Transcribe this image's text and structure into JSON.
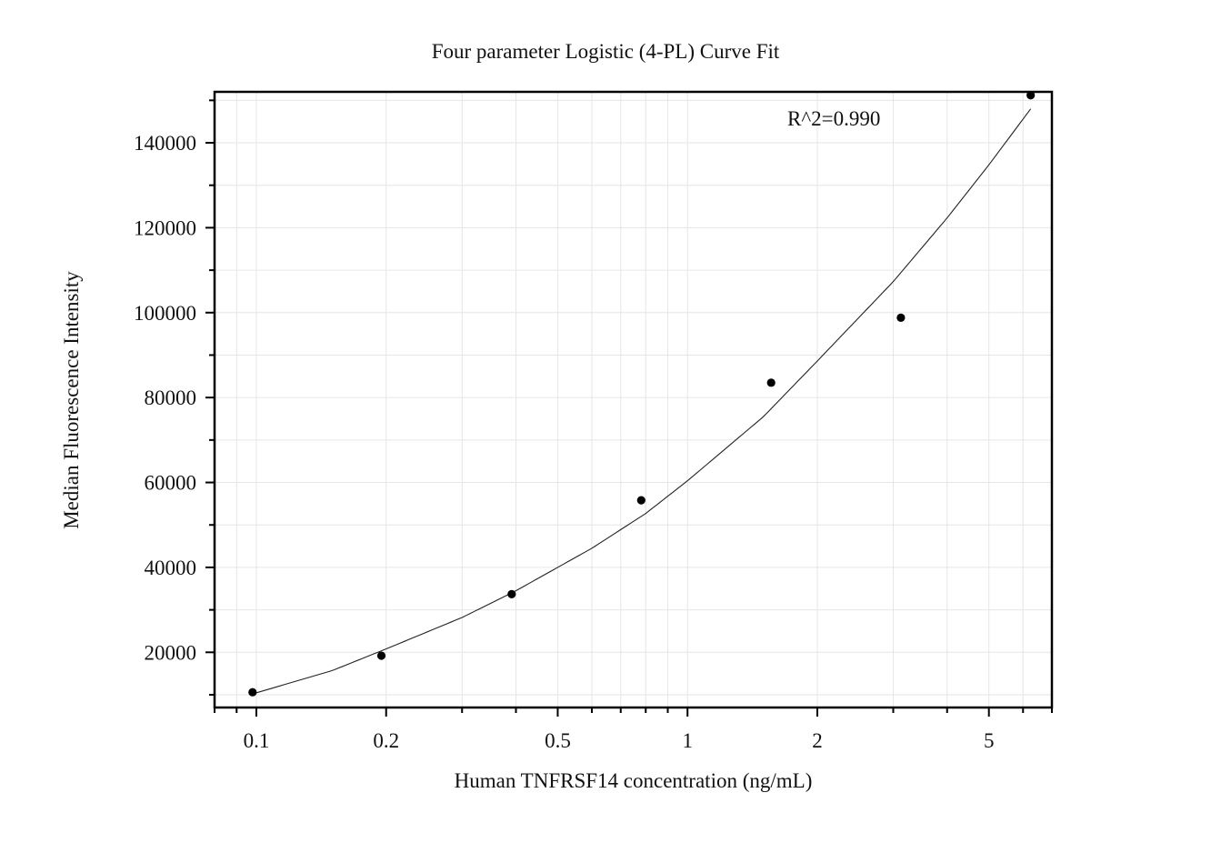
{
  "chart_data": {
    "type": "scatter",
    "title": "Four parameter Logistic (4-PL) Curve Fit",
    "xlabel": "Human TNFRSF14 concentration (ng/mL)",
    "ylabel": "Median Fluorescence Intensity",
    "x_scale": "log",
    "xlim": [
      0.08,
      7.0
    ],
    "ylim": [
      7000,
      152000
    ],
    "x_ticks": [
      {
        "value": 0.1,
        "label": "0.1"
      },
      {
        "value": 0.2,
        "label": "0.2"
      },
      {
        "value": 0.5,
        "label": "0.5"
      },
      {
        "value": 1,
        "label": "1"
      },
      {
        "value": 2,
        "label": "2"
      },
      {
        "value": 5,
        "label": "5"
      }
    ],
    "y_ticks": [
      {
        "value": 20000,
        "label": "20000"
      },
      {
        "value": 40000,
        "label": "40000"
      },
      {
        "value": 60000,
        "label": "60000"
      },
      {
        "value": 80000,
        "label": "80000"
      },
      {
        "value": 100000,
        "label": "100000"
      },
      {
        "value": 120000,
        "label": "120000"
      },
      {
        "value": 140000,
        "label": "140000"
      }
    ],
    "grid": true,
    "annotation": "R^2=0.990",
    "points": {
      "x": [
        0.098,
        0.195,
        0.391,
        0.781,
        1.563,
        3.125,
        6.25
      ],
      "y": [
        10600,
        19200,
        33700,
        55800,
        83500,
        98800,
        151200
      ]
    },
    "fit_curve": {
      "x": [
        0.098,
        0.15,
        0.2,
        0.3,
        0.4,
        0.6,
        0.8,
        1.0,
        1.5,
        2.0,
        3.0,
        4.0,
        5.0,
        6.25
      ],
      "y": [
        10200,
        15700,
        20800,
        28200,
        34500,
        44500,
        52700,
        60400,
        75500,
        88600,
        107300,
        122300,
        134800,
        148000
      ]
    }
  }
}
